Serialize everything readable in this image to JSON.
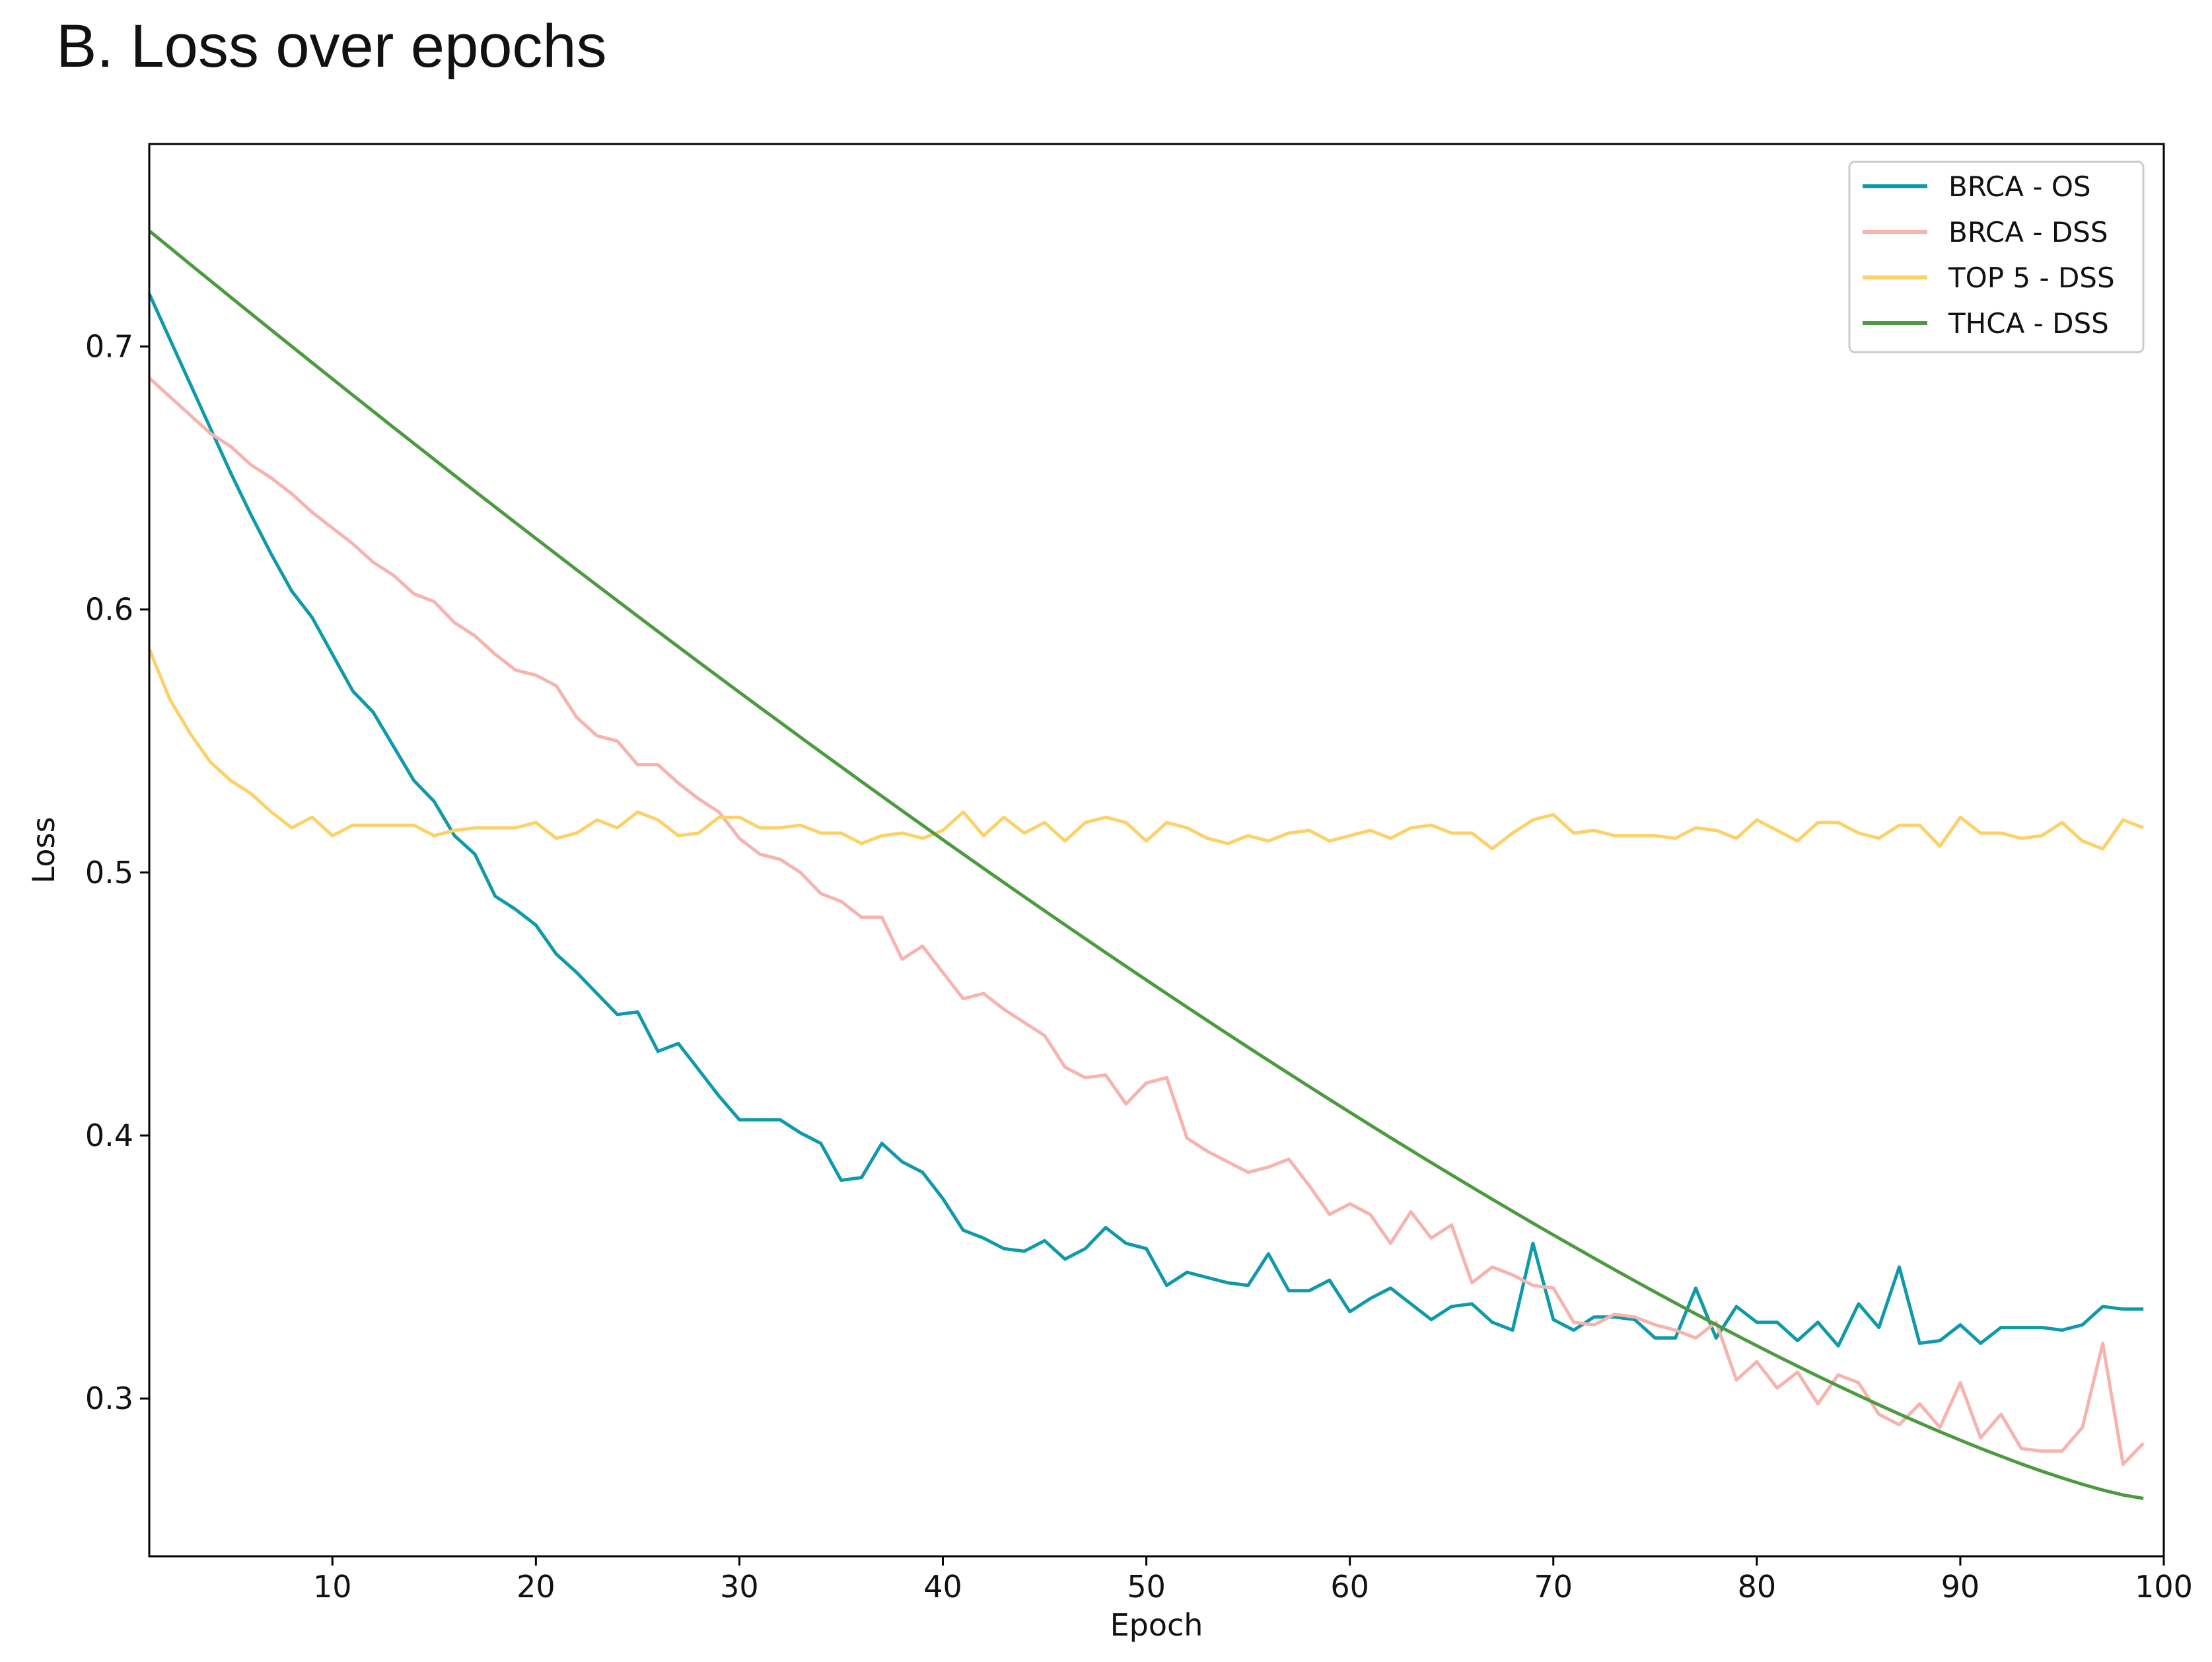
{
  "figure_title": "B. Loss over epochs",
  "chart_data": {
    "type": "line",
    "title": "B. Loss over epochs",
    "xlabel": "Epoch",
    "ylabel": "Loss",
    "xlim": [
      1,
      100
    ],
    "ylim": [
      0.24,
      0.777
    ],
    "xticks": [
      10,
      20,
      30,
      40,
      50,
      60,
      70,
      80,
      90,
      100
    ],
    "yticks": [
      0.3,
      0.4,
      0.5,
      0.6,
      0.7
    ],
    "grid": false,
    "legend_position": "top-right",
    "series": [
      {
        "name": "BRCA - OS",
        "color": "#0e9aaa",
        "x": [
          1,
          2,
          3,
          4,
          5,
          6,
          7,
          8,
          9,
          10,
          11,
          12,
          13,
          14,
          15,
          16,
          17,
          18,
          19,
          20,
          21,
          22,
          23,
          24,
          25,
          26,
          27,
          28,
          29,
          30,
          31,
          32,
          33,
          34,
          35,
          36,
          37,
          38,
          39,
          40,
          41,
          42,
          43,
          44,
          45,
          46,
          47,
          48,
          49,
          50,
          51,
          52,
          53,
          54,
          55,
          56,
          57,
          58,
          59,
          60,
          61,
          62,
          63,
          64,
          65,
          66,
          67,
          68,
          69,
          70,
          71,
          72,
          73,
          74,
          75,
          76,
          77,
          78,
          79,
          80,
          81,
          82,
          83,
          84,
          85,
          86,
          87,
          88,
          89,
          90,
          91,
          92,
          93,
          94,
          95,
          96,
          97,
          98,
          99
        ],
        "values": [
          0.72,
          0.703,
          0.686,
          0.669,
          0.652,
          0.636,
          0.621,
          0.607,
          0.597,
          0.583,
          0.569,
          0.561,
          0.548,
          0.535,
          0.527,
          0.514,
          0.507,
          0.491,
          0.486,
          0.48,
          0.469,
          0.462,
          0.454,
          0.446,
          0.447,
          0.432,
          0.435,
          0.425,
          0.415,
          0.406,
          0.406,
          0.406,
          0.401,
          0.397,
          0.383,
          0.384,
          0.397,
          0.39,
          0.386,
          0.376,
          0.364,
          0.361,
          0.357,
          0.356,
          0.36,
          0.353,
          0.357,
          0.365,
          0.359,
          0.357,
          0.343,
          0.348,
          0.346,
          0.344,
          0.343,
          0.355,
          0.341,
          0.341,
          0.345,
          0.333,
          0.338,
          0.342,
          0.336,
          0.33,
          0.335,
          0.336,
          0.329,
          0.326,
          0.359,
          0.33,
          0.326,
          0.331,
          0.331,
          0.33,
          0.323,
          0.323,
          0.342,
          0.323,
          0.335,
          0.329,
          0.329,
          0.322,
          0.329,
          0.32,
          0.336,
          0.327,
          0.35,
          0.321,
          0.322,
          0.328,
          0.321,
          0.327,
          0.327,
          0.327,
          0.326,
          0.328,
          0.335,
          0.334,
          0.334
        ]
      },
      {
        "name": "BRCA - DSS",
        "color": "#f7b3ad",
        "x": [
          1,
          2,
          3,
          4,
          5,
          6,
          7,
          8,
          9,
          10,
          11,
          12,
          13,
          14,
          15,
          16,
          17,
          18,
          19,
          20,
          21,
          22,
          23,
          24,
          25,
          26,
          27,
          28,
          29,
          30,
          31,
          32,
          33,
          34,
          35,
          36,
          37,
          38,
          39,
          40,
          41,
          42,
          43,
          44,
          45,
          46,
          47,
          48,
          49,
          50,
          51,
          52,
          53,
          54,
          55,
          56,
          57,
          58,
          59,
          60,
          61,
          62,
          63,
          64,
          65,
          66,
          67,
          68,
          69,
          70,
          71,
          72,
          73,
          74,
          75,
          76,
          77,
          78,
          79,
          80,
          81,
          82,
          83,
          84,
          85,
          86,
          87,
          88,
          89,
          90,
          91,
          92,
          93,
          94,
          95,
          96,
          97,
          98,
          99
        ],
        "values": [
          0.688,
          0.681,
          0.674,
          0.667,
          0.662,
          0.655,
          0.65,
          0.644,
          0.637,
          0.631,
          0.625,
          0.618,
          0.613,
          0.606,
          0.603,
          0.595,
          0.59,
          0.583,
          0.577,
          0.575,
          0.571,
          0.559,
          0.552,
          0.55,
          0.541,
          0.541,
          0.534,
          0.528,
          0.523,
          0.513,
          0.507,
          0.505,
          0.5,
          0.492,
          0.489,
          0.483,
          0.483,
          0.467,
          0.472,
          0.462,
          0.452,
          0.454,
          0.448,
          0.443,
          0.438,
          0.426,
          0.422,
          0.423,
          0.412,
          0.42,
          0.422,
          0.399,
          0.394,
          0.39,
          0.386,
          0.388,
          0.391,
          0.381,
          0.37,
          0.374,
          0.37,
          0.359,
          0.371,
          0.361,
          0.366,
          0.344,
          0.35,
          0.347,
          0.343,
          0.342,
          0.329,
          0.328,
          0.332,
          0.331,
          0.328,
          0.326,
          0.323,
          0.329,
          0.307,
          0.314,
          0.304,
          0.31,
          0.298,
          0.309,
          0.306,
          0.294,
          0.29,
          0.298,
          0.289,
          0.306,
          0.285,
          0.294,
          0.281,
          0.28,
          0.28,
          0.289,
          0.321,
          0.275,
          0.283
        ]
      },
      {
        "name": "TOP 5 - DSS",
        "color": "#fbd168",
        "x": [
          1,
          2,
          3,
          4,
          5,
          6,
          7,
          8,
          9,
          10,
          11,
          12,
          13,
          14,
          15,
          16,
          17,
          18,
          19,
          20,
          21,
          22,
          23,
          24,
          25,
          26,
          27,
          28,
          29,
          30,
          31,
          32,
          33,
          34,
          35,
          36,
          37,
          38,
          39,
          40,
          41,
          42,
          43,
          44,
          45,
          46,
          47,
          48,
          49,
          50,
          51,
          52,
          53,
          54,
          55,
          56,
          57,
          58,
          59,
          60,
          61,
          62,
          63,
          64,
          65,
          66,
          67,
          68,
          69,
          70,
          71,
          72,
          73,
          74,
          75,
          76,
          77,
          78,
          79,
          80,
          81,
          82,
          83,
          84,
          85,
          86,
          87,
          88,
          89,
          90,
          91,
          92,
          93,
          94,
          95,
          96,
          97,
          98,
          99
        ],
        "values": [
          0.585,
          0.566,
          0.553,
          0.542,
          0.535,
          0.53,
          0.523,
          0.517,
          0.521,
          0.514,
          0.518,
          0.518,
          0.518,
          0.518,
          0.514,
          0.516,
          0.517,
          0.517,
          0.517,
          0.519,
          0.513,
          0.515,
          0.52,
          0.517,
          0.523,
          0.52,
          0.514,
          0.515,
          0.521,
          0.521,
          0.517,
          0.517,
          0.518,
          0.515,
          0.515,
          0.511,
          0.514,
          0.515,
          0.513,
          0.516,
          0.523,
          0.514,
          0.521,
          0.515,
          0.519,
          0.512,
          0.519,
          0.521,
          0.519,
          0.512,
          0.519,
          0.517,
          0.513,
          0.511,
          0.514,
          0.512,
          0.515,
          0.516,
          0.512,
          0.514,
          0.516,
          0.513,
          0.517,
          0.518,
          0.515,
          0.515,
          0.509,
          0.515,
          0.52,
          0.522,
          0.515,
          0.516,
          0.514,
          0.514,
          0.514,
          0.513,
          0.517,
          0.516,
          0.513,
          0.52,
          0.516,
          0.512,
          0.519,
          0.519,
          0.515,
          0.513,
          0.518,
          0.518,
          0.51,
          0.521,
          0.515,
          0.515,
          0.513,
          0.514,
          0.519,
          0.512,
          0.509,
          0.52,
          0.517
        ]
      },
      {
        "name": "THCA - DSS",
        "color": "#4c9a3f",
        "x": [
          1,
          99
        ],
        "values": [
          0.744,
          0.262
        ],
        "curve_exponent": 1.29
      }
    ]
  }
}
